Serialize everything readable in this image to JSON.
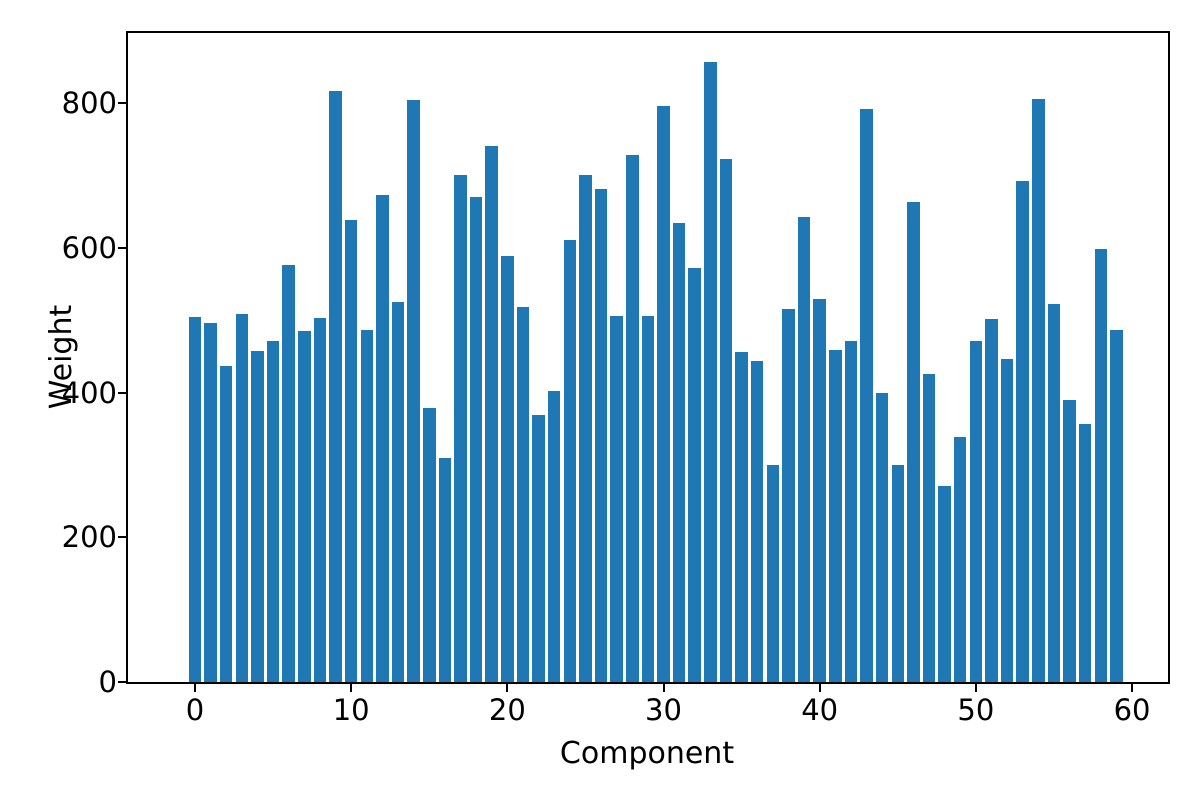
{
  "chart_data": {
    "type": "bar",
    "title": "",
    "xlabel": "Component",
    "ylabel": "Weight",
    "x": [
      0,
      1,
      2,
      3,
      4,
      5,
      6,
      7,
      8,
      9,
      10,
      11,
      12,
      13,
      14,
      15,
      16,
      17,
      18,
      19,
      20,
      21,
      22,
      23,
      24,
      25,
      26,
      27,
      28,
      29,
      30,
      31,
      32,
      33,
      34,
      35,
      36,
      37,
      38,
      39,
      40,
      41,
      42,
      43,
      44,
      45,
      46,
      47,
      48,
      49,
      50,
      51,
      52,
      53,
      54,
      55,
      56,
      57,
      58,
      59
    ],
    "values": [
      505,
      496,
      437,
      509,
      457,
      472,
      576,
      485,
      503,
      817,
      638,
      486,
      673,
      525,
      804,
      379,
      310,
      701,
      670,
      741,
      589,
      519,
      369,
      402,
      611,
      701,
      681,
      506,
      729,
      506,
      796,
      634,
      572,
      857,
      723,
      456,
      444,
      300,
      516,
      643,
      530,
      459,
      471,
      792,
      400,
      300,
      663,
      426,
      271,
      339,
      471,
      502,
      447,
      692,
      806,
      522,
      390,
      357,
      598,
      486
    ],
    "x_tick_labels": [
      "0",
      "10",
      "20",
      "30",
      "40",
      "50",
      "60"
    ],
    "x_tick_values": [
      0,
      10,
      20,
      30,
      40,
      50,
      60
    ],
    "y_tick_labels": [
      "0",
      "200",
      "400",
      "600",
      "800"
    ],
    "y_tick_values": [
      0,
      200,
      400,
      600,
      800
    ],
    "ylim": [
      0,
      897
    ],
    "grid": false,
    "legend": false,
    "bar_color": "#1f77b4",
    "axes_frame_color": "#000000",
    "background_color": "#ffffff"
  }
}
